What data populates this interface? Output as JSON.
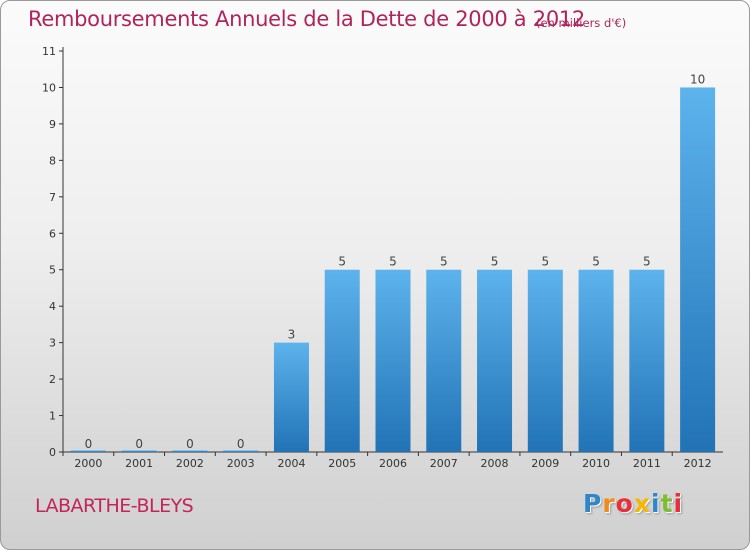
{
  "title": "Remboursements Annuels de la Dette de 2000 à 2012",
  "unit": "(en milliers d'€)",
  "commune": "LABARTHE-BLEYS",
  "logo": {
    "letters": [
      "P",
      "r",
      "o",
      "x",
      "i",
      "t",
      "i"
    ],
    "colors": [
      "#2f86c9",
      "#f18a1d",
      "#e8303a",
      "#f5b800",
      "#2f86c9",
      "#7dbd2f",
      "#e8303a"
    ]
  },
  "colors": {
    "bar_top": "#5db3ec",
    "bar_bottom": "#2173b6",
    "title": "#b0245a",
    "axis": "#333333"
  },
  "chart_data": {
    "type": "bar",
    "categories": [
      "2000",
      "2001",
      "2002",
      "2003",
      "2004",
      "2005",
      "2006",
      "2007",
      "2008",
      "2009",
      "2010",
      "2011",
      "2012"
    ],
    "values": [
      0,
      0,
      0,
      0,
      3,
      5,
      5,
      5,
      5,
      5,
      5,
      5,
      10
    ],
    "value_labels": [
      "0",
      "0",
      "0",
      "0",
      "3",
      "5",
      "5",
      "5",
      "5",
      "5",
      "5",
      "5",
      "10"
    ],
    "ylim": [
      0,
      11
    ],
    "yticks": [
      "0",
      "1",
      "2",
      "3",
      "4",
      "5",
      "6",
      "7",
      "8",
      "9",
      "10",
      "11"
    ],
    "xlabel": "",
    "ylabel": "",
    "grid": false
  }
}
